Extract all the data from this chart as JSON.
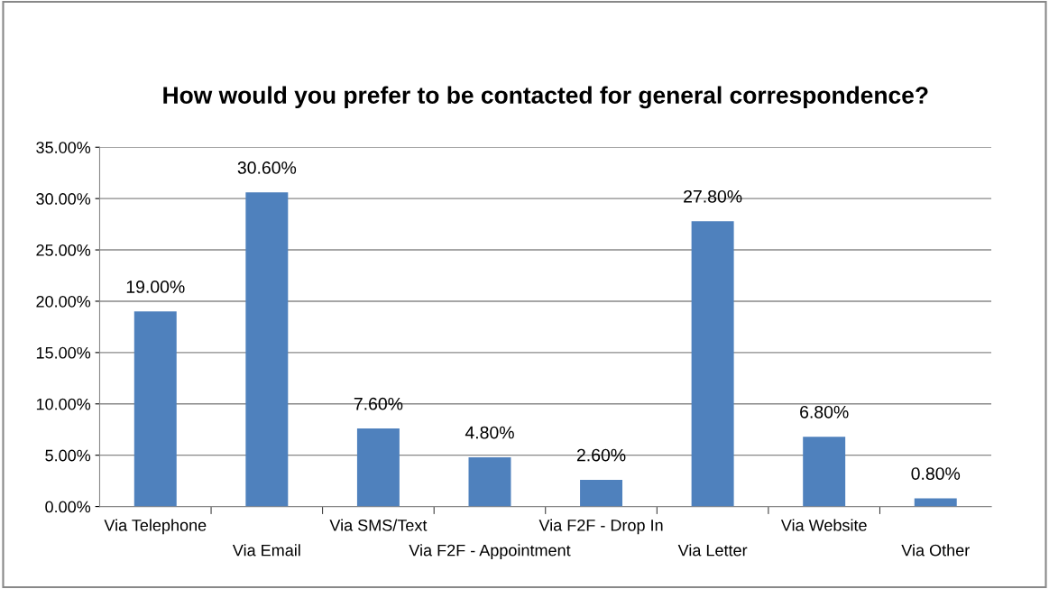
{
  "chart_data": {
    "type": "bar",
    "title": "How would you prefer to be contacted for general correspondence?",
    "categories": [
      "Via Telephone",
      "Via Email",
      "Via SMS/Text",
      "Via F2F - Appointment",
      "Via F2F - Drop In",
      "Via Letter",
      "Via Website",
      "Via Other"
    ],
    "values": [
      19.0,
      30.6,
      7.6,
      4.8,
      2.6,
      27.8,
      6.8,
      0.8
    ],
    "value_labels": [
      "19.00%",
      "30.60%",
      "7.60%",
      "4.80%",
      "2.60%",
      "27.80%",
      "6.80%",
      "0.80%"
    ],
    "color": "#4f81bd",
    "ylim": [
      0,
      35
    ],
    "yticks": [
      {
        "value": 0,
        "label": "0.00%"
      },
      {
        "value": 5,
        "label": "5.00%"
      },
      {
        "value": 10,
        "label": "10.00%"
      },
      {
        "value": 15,
        "label": "15.00%"
      },
      {
        "value": 20,
        "label": "20.00%"
      },
      {
        "value": 25,
        "label": "25.00%"
      },
      {
        "value": 30,
        "label": "30.00%"
      },
      {
        "value": 35,
        "label": "35.00%"
      }
    ],
    "grid": "y",
    "legend": false
  }
}
